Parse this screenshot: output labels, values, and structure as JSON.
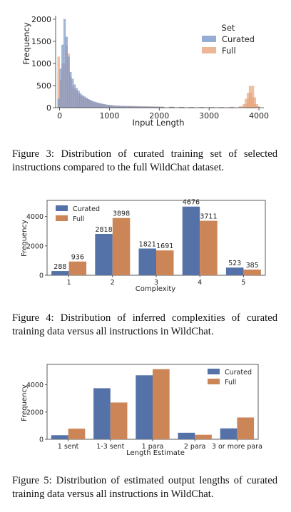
{
  "figures": [
    {
      "caption": "Figure 3: Distribution of curated training set of selected instructions compared to the full WildChat dataset.",
      "chart_data": {
        "type": "histogram",
        "title": "",
        "xlabel": "Input Length",
        "ylabel": "Frequency",
        "xlim": [
          -80,
          4100
        ],
        "ylim": [
          0,
          2080
        ],
        "x_ticks": [
          0,
          1000,
          2000,
          3000,
          4000
        ],
        "y_ticks": [
          0,
          500,
          1000,
          1500,
          2000
        ],
        "legend": {
          "title": "Set",
          "position": "top-right",
          "entries": [
            "Curated",
            "Full"
          ]
        },
        "bin_width": 40,
        "series": [
          {
            "name": "Curated",
            "color": "#7b97c9",
            "bins": [
              [
                -40,
                200
              ],
              [
                0,
                880
              ],
              [
                40,
                1420
              ],
              [
                80,
                2000
              ],
              [
                120,
                1600
              ],
              [
                160,
                1150
              ],
              [
                200,
                800
              ],
              [
                240,
                650
              ],
              [
                280,
                520
              ],
              [
                320,
                440
              ],
              [
                360,
                380
              ],
              [
                400,
                320
              ],
              [
                440,
                280
              ],
              [
                480,
                250
              ],
              [
                520,
                220
              ],
              [
                560,
                190
              ],
              [
                600,
                170
              ],
              [
                640,
                150
              ],
              [
                680,
                135
              ],
              [
                720,
                120
              ],
              [
                760,
                105
              ],
              [
                800,
                95
              ],
              [
                840,
                85
              ],
              [
                880,
                75
              ],
              [
                920,
                65
              ],
              [
                960,
                60
              ],
              [
                1000,
                55
              ],
              [
                1040,
                50
              ],
              [
                1080,
                45
              ],
              [
                1120,
                40
              ],
              [
                1160,
                38
              ],
              [
                1200,
                35
              ],
              [
                1300,
                30
              ],
              [
                1400,
                28
              ],
              [
                1500,
                25
              ],
              [
                1600,
                22
              ],
              [
                1700,
                20
              ],
              [
                1800,
                18
              ],
              [
                1900,
                17
              ],
              [
                2000,
                15
              ],
              [
                2200,
                12
              ],
              [
                2400,
                10
              ],
              [
                2600,
                8
              ],
              [
                2800,
                7
              ],
              [
                3000,
                6
              ],
              [
                3200,
                5
              ],
              [
                3400,
                4
              ]
            ]
          },
          {
            "name": "Full",
            "color": "#e8a57d",
            "bins": [
              [
                -40,
                1150
              ],
              [
                0,
                620
              ],
              [
                40,
                1000
              ],
              [
                80,
                1000
              ],
              [
                120,
                1400
              ],
              [
                160,
                1220
              ],
              [
                200,
                700
              ],
              [
                240,
                480
              ],
              [
                280,
                420
              ],
              [
                320,
                380
              ],
              [
                360,
                320
              ],
              [
                400,
                280
              ],
              [
                440,
                250
              ],
              [
                480,
                220
              ],
              [
                520,
                200
              ],
              [
                560,
                170
              ],
              [
                600,
                150
              ],
              [
                640,
                130
              ],
              [
                680,
                120
              ],
              [
                720,
                110
              ],
              [
                760,
                100
              ],
              [
                800,
                90
              ],
              [
                840,
                80
              ],
              [
                880,
                70
              ],
              [
                920,
                65
              ],
              [
                960,
                60
              ],
              [
                1000,
                55
              ],
              [
                1040,
                50
              ],
              [
                1080,
                48
              ],
              [
                1120,
                45
              ],
              [
                1160,
                42
              ],
              [
                1200,
                40
              ],
              [
                1300,
                38
              ],
              [
                1400,
                35
              ],
              [
                1500,
                32
              ],
              [
                1600,
                30
              ],
              [
                1700,
                28
              ],
              [
                1800,
                25
              ],
              [
                1900,
                22
              ],
              [
                2000,
                20
              ],
              [
                2200,
                18
              ],
              [
                2400,
                15
              ],
              [
                2600,
                12
              ],
              [
                2800,
                12
              ],
              [
                3000,
                10
              ],
              [
                3200,
                10
              ],
              [
                3400,
                15
              ],
              [
                3600,
                30
              ],
              [
                3680,
                80
              ],
              [
                3720,
                200
              ],
              [
                3760,
                330
              ],
              [
                3800,
                490
              ],
              [
                3840,
                230
              ],
              [
                3880,
                80
              ],
              [
                3920,
                30
              ]
            ]
          }
        ]
      }
    },
    {
      "caption": "Figure 4: Distribution of inferred complexities of curated training data versus all instructions in WildChat.",
      "chart_data": {
        "type": "bar",
        "title": "",
        "categories": [
          "1",
          "2",
          "3",
          "4",
          "5"
        ],
        "xlabel": "Complexity",
        "ylabel": "Frequency",
        "ylim": [
          0,
          5100
        ],
        "y_ticks": [
          0,
          2000,
          4000
        ],
        "legend": {
          "position": "top-left"
        },
        "series": [
          {
            "name": "Curated",
            "color": "#5472a8",
            "values": [
              288,
              2818,
              1821,
              4676,
              523
            ]
          },
          {
            "name": "Full",
            "color": "#cc8557",
            "values": [
              936,
              3898,
              1691,
              3711,
              385
            ]
          }
        ]
      }
    },
    {
      "caption": "Figure 5: Distribution of estimated output lengths of curated training data versus all instructions in WildChat.",
      "chart_data": {
        "type": "bar",
        "title": "",
        "categories": [
          "1 sent",
          "1-3 sent",
          "1 para",
          "2 para",
          "3 or more para"
        ],
        "xlabel": "Length Estimate",
        "ylabel": "Frequency",
        "ylim": [
          0,
          5500
        ],
        "y_ticks": [
          0,
          2000,
          4000
        ],
        "legend": {
          "position": "top-right"
        },
        "series": [
          {
            "name": "Curated",
            "color": "#5472a8",
            "values": [
              300,
              3750,
              4700,
              480,
              800
            ]
          },
          {
            "name": "Full",
            "color": "#cc8557",
            "values": [
              780,
              2700,
              5150,
              330,
              1600
            ]
          }
        ]
      }
    }
  ]
}
